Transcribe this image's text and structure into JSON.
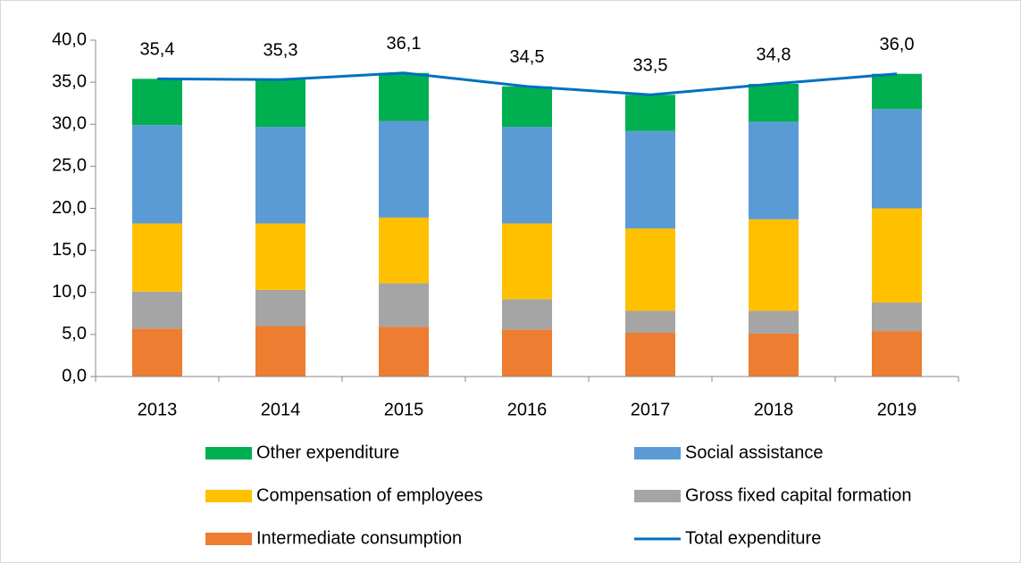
{
  "chart_data": {
    "type": "stacked_bar_line",
    "categories": [
      "2013",
      "2014",
      "2015",
      "2016",
      "2017",
      "2018",
      "2019"
    ],
    "series": [
      {
        "name": "Intermediate consumption",
        "color": "#ed7d31",
        "values": [
          5.7,
          6.0,
          5.9,
          5.6,
          5.2,
          5.1,
          5.4
        ]
      },
      {
        "name": "Gross fixed capital formation",
        "color": "#a5a5a5",
        "values": [
          4.4,
          4.3,
          5.2,
          3.6,
          2.6,
          2.7,
          3.4
        ]
      },
      {
        "name": "Compensation of employees",
        "color": "#ffc000",
        "values": [
          8.1,
          7.9,
          7.8,
          9.0,
          9.8,
          10.9,
          11.2
        ]
      },
      {
        "name": "Social assistance",
        "color": "#5b9bd5",
        "values": [
          11.7,
          11.5,
          11.5,
          11.5,
          11.6,
          11.6,
          11.8
        ]
      },
      {
        "name": "Other expenditure",
        "color": "#00b050",
        "values": [
          5.5,
          5.6,
          5.7,
          4.8,
          4.3,
          4.5,
          4.2
        ]
      }
    ],
    "line": {
      "name": "Total expenditure",
      "color": "#0070c0",
      "values": [
        35.4,
        35.3,
        36.1,
        34.5,
        33.5,
        34.8,
        36.0
      ],
      "value_labels": [
        "35,4",
        "35,3",
        "36,1",
        "34,5",
        "33,5",
        "34,8",
        "36,0"
      ]
    },
    "ylim": [
      0,
      40
    ],
    "yticks": [
      {
        "value": 0,
        "label": "0,0"
      },
      {
        "value": 5,
        "label": "5,0"
      },
      {
        "value": 10,
        "label": "10,0"
      },
      {
        "value": 15,
        "label": "15,0"
      },
      {
        "value": 20,
        "label": "20,0"
      },
      {
        "value": 25,
        "label": "25,0"
      },
      {
        "value": 30,
        "label": "30,0"
      },
      {
        "value": 35,
        "label": "35,0"
      },
      {
        "value": 40,
        "label": "40,0"
      }
    ],
    "legend": "bottom"
  }
}
